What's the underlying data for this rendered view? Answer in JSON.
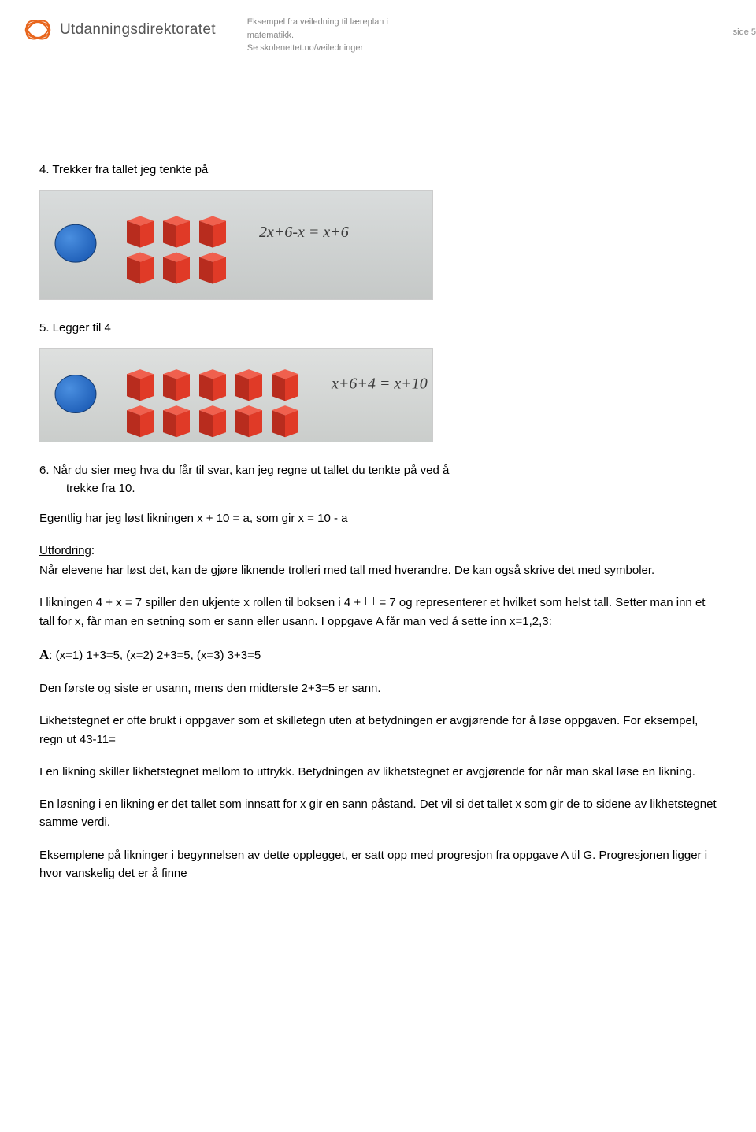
{
  "header": {
    "logo_text": "Utdanningsdirektoratet",
    "meta_line1": "Eksempel fra veiledning til læreplan i",
    "meta_line2": "matematikk.",
    "meta_line3": "Se skolenettet.no/veiledninger",
    "page_label": "side 5"
  },
  "sections": {
    "h4": "4. Trekker fra tallet jeg tenkte på",
    "h5": "5. Legger til 4",
    "h6": "6. Når du sier meg hva du får til svar, kan jeg regne ut tallet du tenkte på ved å trekke fra 10."
  },
  "paragraphs": {
    "p1": "Egentlig har jeg løst likningen x + 10 = a, som gir x = 10 - a",
    "p2_label": "Utfordring",
    "p2_rest": ":",
    "p3": "Når elevene har løst det, kan de gjøre liknende trolleri med tall med hverandre. De kan også skrive det med symboler.",
    "p4a": "I likningen 4 + x = 7 spiller den ukjente x rollen til boksen i 4 + ",
    "p4b": " = 7 og representerer et hvilket som helst tall. Setter man inn et tall for x, får man en setning som er sann eller usann. I oppgave A får man ved å sette inn x=1,2,3:",
    "p5_prefix": "A",
    "p5_rest": ":  (x=1)  1+3=5,  (x=2) 2+3=5, (x=3) 3+3=5",
    "p6": "Den første og siste er usann, mens den midterste 2+3=5 er sann.",
    "p7": "Likhetstegnet er ofte brukt i oppgaver som et skilletegn uten at betydningen er avgjørende for å løse oppgaven. For eksempel, regn ut 43-11=",
    "p8": "I en likning skiller likhetstegnet mellom to uttrykk. Betydningen av likhetstegnet er avgjørende for når man skal løse en likning.",
    "p9": "En løsning i en likning er det tallet som innsatt for x gir en sann påstand. Det vil si det tallet x som gir de to sidene av likhetstegnet samme verdi.",
    "p10": "Eksemplene på likninger i begynnelsen av dette opplegget, er satt opp med progresjon fra oppgave A til G. Progresjonen ligger i hvor vanskelig det er å finne"
  },
  "figures": {
    "fig1": {
      "equation": "2x+6-x = x+6",
      "bg_top": "#d9dcdc",
      "bg_bottom": "#c5c8c7",
      "blue_chip": "#1f5fb8",
      "blue_chip_shine": "#4a8fe0",
      "cube_color": "#e03a27",
      "cube_top": "#f0604e",
      "cube_side": "#b82c1e",
      "text_color": "#3a3a3a",
      "rows": 2,
      "cols": 3
    },
    "fig2": {
      "equation": "x+6+4 = x+10",
      "bg_top": "#dee0df",
      "bg_bottom": "#cacdcb",
      "blue_chip": "#1f5fb8",
      "blue_chip_shine": "#4a8fe0",
      "cube_color": "#e03a27",
      "cube_top": "#f0604e",
      "cube_side": "#b82c1e",
      "text_color": "#3a3a3a",
      "rows": 2,
      "cols": 5
    }
  },
  "colors": {
    "text": "#000000",
    "meta": "#888888",
    "logo_orange": "#e8651c"
  }
}
